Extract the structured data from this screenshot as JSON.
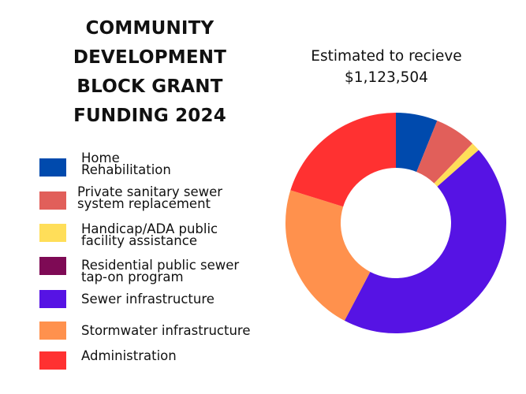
{
  "title_lines": [
    "COMMUNITY",
    "DEVELOPMENT",
    "BLOCK GRANT",
    "FUNDING 2024"
  ],
  "subtitle_lines": [
    "Estimated to recieve",
    "$1,123,504"
  ],
  "legend": [
    {
      "lines": [
        "Home",
        "Rehabilitation"
      ],
      "color": "#004aad"
    },
    {
      "lines": [
        "Private sanitary sewer",
        "system replacement"
      ],
      "color": "#e15f5a"
    },
    {
      "lines": [
        "Handicap/ADA public",
        "facility assistance"
      ],
      "color": "#ffde59"
    },
    {
      "lines": [
        "Residential public sewer",
        "tap-on program"
      ],
      "color": "#7e0a55"
    },
    {
      "lines": [
        "Sewer infrastructure"
      ],
      "color": "#5613e4"
    },
    {
      "lines": [
        "Stormwater infrastructure"
      ],
      "color": "#ff914d"
    },
    {
      "lines": [
        "Administration"
      ],
      "color": "#ff3131"
    }
  ],
  "chart_data": {
    "type": "pie",
    "variant": "donut",
    "title": "COMMUNITY DEVELOPMENT BLOCK GRANT FUNDING 2024",
    "subtitle": "Estimated to recieve $1,123,504",
    "total": 1123504,
    "categories": [
      "Home Rehabilitation",
      "Private sanitary sewer system replacement",
      "Handicap/ADA public facility assistance",
      "Residential public sewer tap-on program",
      "Sewer infrastructure",
      "Stormwater infrastructure",
      "Administration"
    ],
    "values": [
      6.1,
      6.1,
      1.3,
      0,
      44.2,
      22.1,
      20.2
    ],
    "unit": "percent (estimated from slice angles)",
    "colors": [
      "#004aad",
      "#e15f5a",
      "#ffde59",
      "#7e0a55",
      "#5613e4",
      "#ff914d",
      "#ff3131"
    ],
    "start_angle_deg": 0,
    "direction": "clockwise",
    "inner_radius_ratio": 0.5,
    "legend_position": "left"
  }
}
